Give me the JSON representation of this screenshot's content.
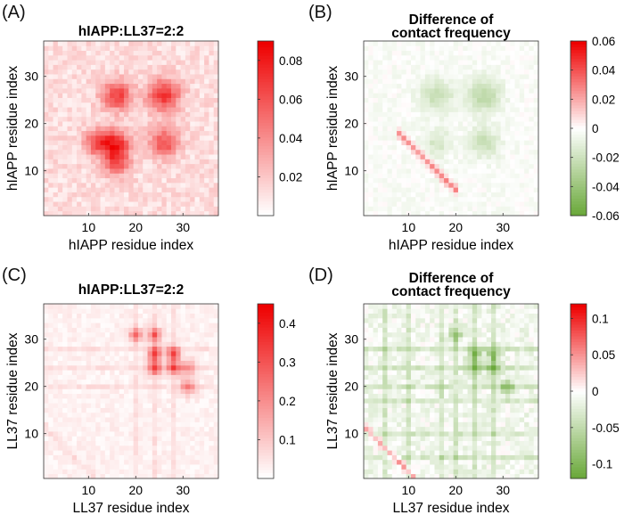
{
  "chart_data": [
    {
      "type": "heatmap",
      "panel_label": "(A)",
      "title": "hIAPP:LL37=2:2",
      "xlabel": "hIAPP residue index",
      "ylabel": "hIAPP residue index",
      "n": 37,
      "xticks": [
        "10",
        "20",
        "30"
      ],
      "yticks": [
        "10",
        "20",
        "30"
      ],
      "colorbar": {
        "range": [
          0,
          0.09
        ],
        "ticks": [
          "0.02",
          "0.04",
          "0.06",
          "0.08"
        ],
        "colors": [
          "#ffffff",
          "#ee0000"
        ]
      },
      "pattern": {
        "base": 0.012,
        "hotspots": [
          {
            "x": 16,
            "y": 26,
            "amp": 0.055,
            "s": 2.2
          },
          {
            "x": 26,
            "y": 26,
            "amp": 0.06,
            "s": 2.4
          },
          {
            "x": 12,
            "y": 16,
            "amp": 0.05,
            "s": 2.0
          },
          {
            "x": 16,
            "y": 16,
            "amp": 0.055,
            "s": 2.0
          },
          {
            "x": 16,
            "y": 12,
            "amp": 0.05,
            "s": 2.0
          },
          {
            "x": 26,
            "y": 16,
            "amp": 0.05,
            "s": 2.2
          }
        ],
        "diagonal": null,
        "stripes": [],
        "noise": 0.008
      },
      "summary": "Contact map with peaks near residues 12-16 and 26 (max about 0.085)"
    },
    {
      "type": "heatmap",
      "panel_label": "(B)",
      "title": "Difference of\ncontact frequency",
      "title_lines": [
        "Difference of",
        "contact frequency"
      ],
      "xlabel": "hIAPP residue index",
      "ylabel": "hIAPP residue index",
      "n": 37,
      "xticks": [
        "10",
        "20",
        "30"
      ],
      "yticks": [
        "10",
        "20",
        "30"
      ],
      "colorbar": {
        "range": [
          -0.06,
          0.06
        ],
        "ticks": [
          "0.06",
          "0.04",
          "0.02",
          "0",
          "-0.02",
          "-0.04",
          "-0.06"
        ],
        "colors": [
          "#6aa83a",
          "#ffffff",
          "#ee0000"
        ]
      },
      "pattern": {
        "base": -0.002,
        "hotspots": [
          {
            "x": 16,
            "y": 26,
            "amp": -0.02,
            "s": 2.5
          },
          {
            "x": 26,
            "y": 26,
            "amp": -0.025,
            "s": 2.5
          },
          {
            "x": 16,
            "y": 16,
            "amp": -0.015,
            "s": 2.0
          },
          {
            "x": 26,
            "y": 16,
            "amp": -0.02,
            "s": 2.2
          }
        ],
        "diagonal": {
          "from": 9,
          "to": 19,
          "offset": -2,
          "amp": 0.03
        },
        "stripes": [],
        "noise": 0.004
      },
      "summary": "Mostly negative (green) near residues 16 and 26; positive band along anti-diagonal around residues 10-18"
    },
    {
      "type": "heatmap",
      "panel_label": "(C)",
      "title": "hIAPP:LL37=2:2",
      "xlabel": "LL37 residue index",
      "ylabel": "LL37 residue index",
      "n": 37,
      "xticks": [
        "10",
        "20",
        "30"
      ],
      "yticks": [
        "10",
        "20",
        "30"
      ],
      "colorbar": {
        "range": [
          0,
          0.45
        ],
        "ticks": [
          "0.1",
          "0.2",
          "0.3",
          "0.4"
        ],
        "colors": [
          "#ffffff",
          "#ee0000"
        ]
      },
      "pattern": {
        "base": 0.025,
        "hotspots": [
          {
            "x": 24,
            "y": 27,
            "amp": 0.3,
            "s": 1.0
          },
          {
            "x": 28,
            "y": 27,
            "amp": 0.3,
            "s": 1.0
          },
          {
            "x": 24,
            "y": 24,
            "amp": 0.3,
            "s": 1.0
          },
          {
            "x": 28,
            "y": 24,
            "amp": 0.25,
            "s": 1.0
          },
          {
            "x": 20,
            "y": 31,
            "amp": 0.2,
            "s": 1.0
          },
          {
            "x": 24,
            "y": 31,
            "amp": 0.25,
            "s": 1.0
          },
          {
            "x": 31,
            "y": 20,
            "amp": 0.18,
            "s": 1.2
          },
          {
            "x": 31,
            "y": 24,
            "amp": 0.15,
            "s": 1.2
          }
        ],
        "diagonal": {
          "from": 2,
          "to": 10,
          "offset": 0,
          "amp": 0.04
        },
        "stripes": [
          20,
          24,
          28
        ],
        "noise": 0.02
      },
      "summary": "Strongest contacts among LL37 residues 20-32 (max about 0.45)"
    },
    {
      "type": "heatmap",
      "panel_label": "(D)",
      "title": "Difference of\ncontact frequency",
      "title_lines": [
        "Difference of",
        "contact frequency"
      ],
      "xlabel": "LL37 residue index",
      "ylabel": "LL37 residue index",
      "n": 37,
      "xticks": [
        "10",
        "20",
        "30"
      ],
      "yticks": [
        "10",
        "20",
        "30"
      ],
      "colorbar": {
        "range": [
          -0.12,
          0.12
        ],
        "ticks": [
          "0.1",
          "0.05",
          "0",
          "-0.05",
          "-0.1"
        ],
        "colors": [
          "#6aa83a",
          "#ffffff",
          "#ee0000"
        ]
      },
      "pattern": {
        "base": -0.01,
        "hotspots": [
          {
            "x": 24,
            "y": 27,
            "amp": -0.08,
            "s": 1.0
          },
          {
            "x": 28,
            "y": 27,
            "amp": -0.08,
            "s": 1.0
          },
          {
            "x": 24,
            "y": 24,
            "amp": -0.07,
            "s": 1.0
          },
          {
            "x": 28,
            "y": 24,
            "amp": -0.08,
            "s": 1.0
          },
          {
            "x": 20,
            "y": 31,
            "amp": -0.06,
            "s": 1.0
          },
          {
            "x": 31,
            "y": 20,
            "amp": -0.06,
            "s": 1.2
          }
        ],
        "diagonal": {
          "from": 2,
          "to": 10,
          "offset": 0,
          "amp": 0.05
        },
        "stripes": [
          5,
          10,
          17,
          20,
          24,
          28
        ],
        "noise": 0.015
      },
      "summary": "Mostly negative (green) vertical/horizontal stripes; positive band along anti-diagonal near residues 2-10"
    }
  ]
}
